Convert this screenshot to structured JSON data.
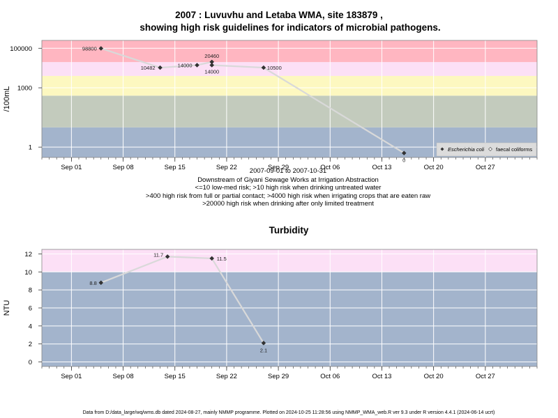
{
  "header": {
    "title_line1": "2007 : Luvuvhu and Letaba WMA, site 183879 ,",
    "title_line2": "showing high risk guidelines for indicators of microbial pathogens."
  },
  "micro": {
    "subtitle_lines": [
      "2007-09-01 to 2007-10-31",
      "Downstream of Giyani Sewage Works at Irrigation Abstraction",
      "<=10 low-med risk; >10 high risk when drinking untreated water",
      ">400 high risk from full or partial contact; >4000 high risk when irrigating crops that are eaten raw",
      ">20000 high risk when drinking after only limited treatment"
    ]
  },
  "turbidity": {
    "title": "Turbidity"
  },
  "footer": "Data from D:/data_large/wq/wms.db dated 2024-08-27, mainly NMMP programme. Plotted on 2024-10-25 11:28:56 using NMMP_WMA_web.R ver 9.3 under R version 4.4.1 (2024-06-14 ucrt)",
  "colors": {
    "band_blue": "#a3b4cc",
    "band_green": "#c3cbbd",
    "band_yellow": "#fdf8c0",
    "band_pink": "#fce0f6",
    "band_red": "#ffb6c1",
    "line": "#d9d9d9",
    "point": "#333333"
  },
  "chart_data": [
    {
      "type": "scatter",
      "ylabel": "/100mL",
      "y_scale": "log10",
      "ylim": [
        0.3,
        250000
      ],
      "xlim": [
        "2007-08-28",
        "2007-11-03"
      ],
      "x_ticks": [
        "2007-09-01",
        "2007-09-08",
        "2007-09-15",
        "2007-09-22",
        "2007-09-29",
        "2007-10-06",
        "2007-10-13",
        "2007-10-20",
        "2007-10-27"
      ],
      "x_tick_labels": [
        "Sep 01",
        "Sep 08",
        "Sep 15",
        "Sep 22",
        "Sep 29",
        "Oct 06",
        "Oct 13",
        "Oct 20",
        "Oct 27"
      ],
      "y_ticks": [
        1,
        1000,
        100000
      ],
      "y_tick_labels": [
        "1",
        "1000",
        "100000"
      ],
      "bands": [
        {
          "from": 0.3,
          "to": 10,
          "color": "band_blue"
        },
        {
          "from": 10,
          "to": 400,
          "color": "band_green"
        },
        {
          "from": 400,
          "to": 4000,
          "color": "band_yellow"
        },
        {
          "from": 4000,
          "to": 20000,
          "color": "band_pink"
        },
        {
          "from": 20000,
          "to": 250000,
          "color": "band_red"
        }
      ],
      "grid": true,
      "legend_position": "bottom-right",
      "series": [
        {
          "name": "Escherichia coli",
          "marker": "filled-diamond",
          "x": [
            "2007-09-05",
            "2007-09-13",
            "2007-09-18",
            "2007-09-20",
            "2007-09-20",
            "2007-09-27",
            "2007-10-16"
          ],
          "y": [
            98800,
            10482,
            14000,
            20460,
            14000,
            10500,
            0.5
          ],
          "labels": [
            "98800",
            "10482",
            "14000",
            "20460",
            "14000",
            "10500",
            "0"
          ]
        },
        {
          "name": "faecal coliforms",
          "marker": "open-diamond",
          "x": [],
          "y": []
        }
      ]
    },
    {
      "type": "scatter",
      "title": "Turbidity",
      "ylabel": "NTU",
      "ylim": [
        -0.5,
        12.5
      ],
      "xlim": [
        "2007-08-28",
        "2007-11-03"
      ],
      "x_ticks": [
        "2007-09-01",
        "2007-09-08",
        "2007-09-15",
        "2007-09-22",
        "2007-09-29",
        "2007-10-06",
        "2007-10-13",
        "2007-10-20",
        "2007-10-27"
      ],
      "x_tick_labels": [
        "Sep 01",
        "Sep 08",
        "Sep 15",
        "Sep 22",
        "Sep 29",
        "Oct 06",
        "Oct 13",
        "Oct 20",
        "Oct 27"
      ],
      "y_ticks": [
        0,
        2,
        4,
        6,
        8,
        10,
        12
      ],
      "y_tick_labels": [
        "0",
        "2",
        "4",
        "6",
        "8",
        "10",
        "12"
      ],
      "bands": [
        {
          "from": -0.5,
          "to": 10,
          "color": "band_blue"
        },
        {
          "from": 10,
          "to": 12.5,
          "color": "band_pink"
        }
      ],
      "grid": true,
      "series": [
        {
          "name": "",
          "marker": "filled-diamond",
          "x": [
            "2007-09-05",
            "2007-09-14",
            "2007-09-20",
            "2007-09-27"
          ],
          "y": [
            8.8,
            11.7,
            11.5,
            2.1
          ],
          "labels": [
            "8.8",
            "11.7",
            "11.5",
            "2.1"
          ]
        }
      ]
    }
  ]
}
